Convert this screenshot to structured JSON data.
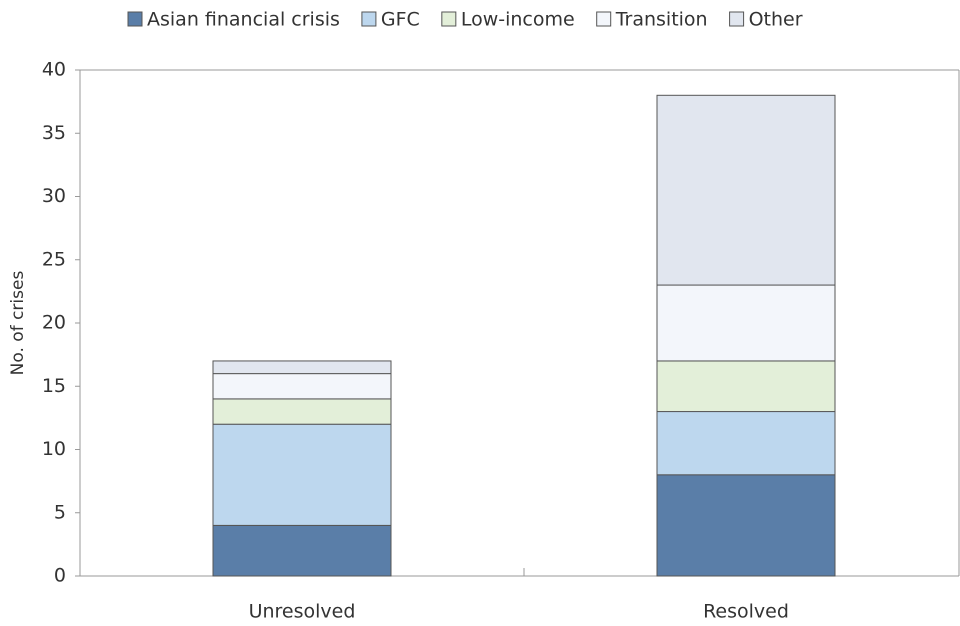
{
  "chart_data": {
    "type": "stacked-bar",
    "categories": [
      "Unresolved",
      "Resolved"
    ],
    "series": [
      {
        "name": "Asian financial crisis",
        "color": "#5a7ea8",
        "values": [
          4,
          8
        ]
      },
      {
        "name": "GFC",
        "color": "#bdd7ee",
        "values": [
          8,
          5
        ]
      },
      {
        "name": "Low-income",
        "color": "#e3efd9",
        "values": [
          2,
          4
        ]
      },
      {
        "name": "Transition",
        "color": "#f3f6fb",
        "values": [
          2,
          6
        ]
      },
      {
        "name": "Other",
        "color": "#e1e6ef",
        "values": [
          1,
          15
        ]
      }
    ],
    "y_label": "No. of crises",
    "ylim": [
      0,
      40
    ],
    "yticks": [
      0,
      5,
      10,
      15,
      20,
      25,
      30,
      35,
      40
    ],
    "grid": false,
    "legend": "top"
  }
}
